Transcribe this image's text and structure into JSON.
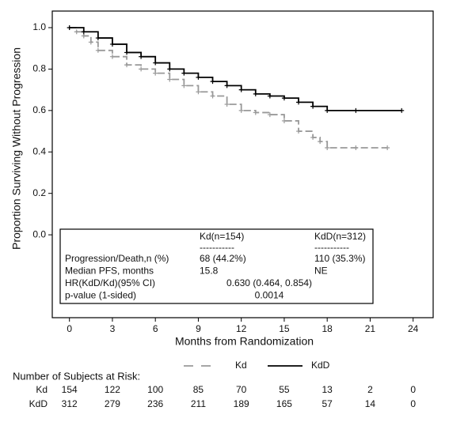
{
  "chart_data": {
    "type": "line",
    "x_label": "Months from Randomization",
    "y_label": "Proportion Surviving Without Progression",
    "xlim": [
      -1.2,
      25.4
    ],
    "ylim": [
      -0.4,
      1.08
    ],
    "xticks": [
      0,
      3,
      6,
      9,
      12,
      15,
      18,
      21,
      24
    ],
    "yticks": [
      {
        "value": 0,
        "label": "0.0"
      },
      0.2,
      0.4,
      0.6,
      0.8,
      {
        "value": 1,
        "label": "1.0"
      }
    ],
    "series": [
      {
        "name": "Kd",
        "color": "#999999",
        "dashed": true,
        "x": [
          0,
          0.5,
          1,
          1.5,
          2,
          3,
          4,
          5,
          6,
          7,
          8,
          9,
          10,
          11,
          12,
          13,
          14,
          15,
          16,
          17,
          17.5,
          18,
          20,
          22.2
        ],
        "values": [
          1.0,
          0.98,
          0.96,
          0.93,
          0.89,
          0.86,
          0.82,
          0.8,
          0.78,
          0.75,
          0.72,
          0.69,
          0.67,
          0.63,
          0.6,
          0.59,
          0.58,
          0.55,
          0.5,
          0.47,
          0.45,
          0.42,
          0.42,
          0.42
        ]
      },
      {
        "name": "KdD",
        "color": "#000000",
        "dashed": false,
        "x": [
          0,
          1,
          2,
          3,
          4,
          5,
          6,
          7,
          8,
          9,
          10,
          11,
          12,
          13,
          14,
          15,
          16,
          17,
          18,
          20,
          23.2
        ],
        "values": [
          1.0,
          0.98,
          0.95,
          0.92,
          0.88,
          0.86,
          0.83,
          0.8,
          0.78,
          0.76,
          0.74,
          0.72,
          0.7,
          0.68,
          0.67,
          0.66,
          0.64,
          0.62,
          0.6,
          0.6,
          0.6
        ]
      }
    ],
    "stats_table": {
      "columns": [
        "Kd(n=154)",
        "KdD(n=312)"
      ],
      "separator": "-----------",
      "rows": [
        [
          "Progression/Death,n (%)",
          "68 (44.2%)",
          "110 (35.3%)"
        ],
        [
          "Median PFS, months",
          "15.8",
          "NE"
        ],
        [
          "HR(KdD/Kd)(95% CI)",
          "0.630 (0.464, 0.854)"
        ],
        [
          "p-value (1-sided)",
          "0.0014"
        ]
      ]
    },
    "risk_table": {
      "title": "Number of Subjects at Risk:",
      "rows": [
        {
          "name": "Kd",
          "values": [
            154,
            122,
            100,
            85,
            70,
            55,
            13,
            2,
            0
          ]
        },
        {
          "name": "KdD",
          "values": [
            312,
            279,
            236,
            211,
            189,
            165,
            57,
            14,
            0
          ]
        }
      ]
    }
  }
}
